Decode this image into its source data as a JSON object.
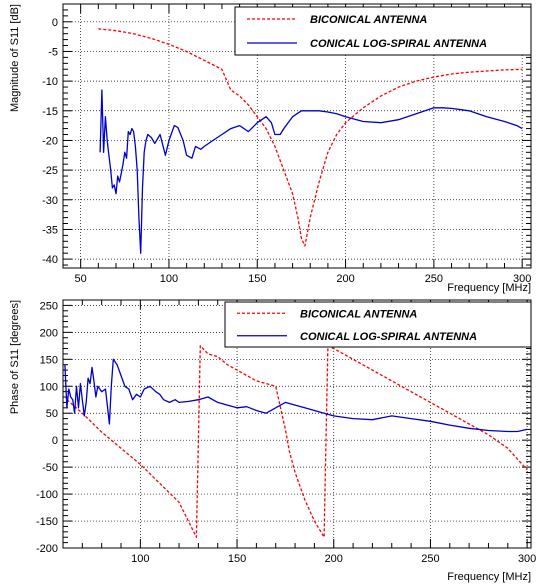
{
  "chart_data": [
    {
      "type": "line",
      "xlabel": "Frequency [MHz]",
      "ylabel": "Magnitude of S11 [dB]",
      "xlim": [
        40,
        305
      ],
      "ylim": [
        -41.5,
        3
      ],
      "xticks": [
        50,
        100,
        150,
        200,
        250,
        300
      ],
      "yticks": [
        -40,
        -35,
        -30,
        -25,
        -20,
        -15,
        -10,
        -5,
        0
      ],
      "grid": true,
      "legend_position": "top-right",
      "series": [
        {
          "name": "BICONICAL ANTENNA",
          "color": "#ff0000",
          "dash": "dashed",
          "x": [
            60,
            70,
            80,
            90,
            100,
            110,
            120,
            130,
            135,
            140,
            145,
            150,
            155,
            160,
            165,
            170,
            173,
            175,
            177,
            180,
            185,
            190,
            195,
            200,
            210,
            220,
            230,
            240,
            250,
            260,
            270,
            280,
            290,
            300
          ],
          "y": [
            -1.2,
            -1.5,
            -2.0,
            -2.8,
            -3.8,
            -5.0,
            -6.5,
            -8.0,
            -11.5,
            -12.5,
            -14.0,
            -16.0,
            -18.0,
            -21.0,
            -25.0,
            -29.0,
            -33.0,
            -36.5,
            -37.8,
            -33.0,
            -27.0,
            -22.0,
            -19.0,
            -17.0,
            -14.5,
            -12.5,
            -11.0,
            -10.0,
            -9.3,
            -8.8,
            -8.5,
            -8.3,
            -8.1,
            -8.0
          ]
        },
        {
          "name": "CONICAL LOG-SPIRAL ANTENNA",
          "color": "#0000cc",
          "dash": "solid",
          "x": [
            61,
            62,
            63,
            64,
            65,
            66,
            67,
            68,
            69,
            70,
            71,
            72,
            73,
            74,
            75,
            76,
            77,
            78,
            79,
            80,
            81,
            82,
            83,
            84,
            85,
            86,
            87,
            88,
            90,
            92,
            95,
            98,
            100,
            103,
            105,
            108,
            110,
            113,
            115,
            118,
            120,
            125,
            130,
            135,
            140,
            145,
            150,
            155,
            158,
            160,
            163,
            165,
            170,
            175,
            180,
            185,
            190,
            195,
            200,
            210,
            220,
            230,
            240,
            250,
            255,
            260,
            270,
            280,
            290,
            297,
            300
          ],
          "y": [
            -22.0,
            -11.5,
            -22.0,
            -16.0,
            -20.0,
            -22.5,
            -25.0,
            -28.0,
            -27.5,
            -29.0,
            -26.0,
            -27.0,
            -25.5,
            -24.0,
            -22.0,
            -23.0,
            -18.5,
            -19.0,
            -18.0,
            -18.5,
            -21.0,
            -25.0,
            -33.0,
            -39.0,
            -28.0,
            -22.0,
            -20.0,
            -19.0,
            -19.5,
            -20.5,
            -19.0,
            -22.5,
            -20.0,
            -17.5,
            -17.8,
            -20.0,
            -22.5,
            -23.0,
            -21.0,
            -21.5,
            -21.0,
            -20.0,
            -19.0,
            -18.0,
            -17.5,
            -18.5,
            -17.0,
            -16.0,
            -17.0,
            -19.0,
            -19.0,
            -18.0,
            -16.0,
            -15.0,
            -15.0,
            -15.0,
            -15.2,
            -15.5,
            -16.0,
            -16.8,
            -17.0,
            -16.5,
            -15.5,
            -14.5,
            -14.5,
            -14.6,
            -15.0,
            -16.0,
            -16.8,
            -17.5,
            -18.0
          ]
        }
      ]
    },
    {
      "type": "line",
      "xlabel": "Frequency [MHz]",
      "ylabel": "Phase of S11 [degrees]",
      "xlim": [
        60,
        302
      ],
      "ylim": [
        -200,
        260
      ],
      "xticks": [
        100,
        150,
        200,
        250,
        300
      ],
      "yticks": [
        -200,
        -150,
        -100,
        -50,
        0,
        50,
        100,
        150,
        200,
        250
      ],
      "grid": true,
      "legend_position": "top-right",
      "series": [
        {
          "name": "BICONICAL ANTENNA",
          "color": "#ff0000",
          "dash": "dashed",
          "x": [
            62,
            70,
            80,
            90,
            100,
            110,
            120,
            129,
            130,
            131,
            135,
            140,
            145,
            150,
            155,
            160,
            165,
            170,
            175,
            177,
            180,
            185,
            190,
            195,
            196,
            197,
            200,
            210,
            220,
            230,
            240,
            250,
            260,
            270,
            280,
            290,
            300
          ],
          "y": [
            75,
            50,
            15,
            -15,
            -45,
            -80,
            -115,
            -180,
            0,
            175,
            160,
            155,
            140,
            130,
            120,
            110,
            105,
            100,
            20,
            -20,
            -60,
            -110,
            -150,
            -180,
            0,
            175,
            170,
            150,
            130,
            110,
            90,
            70,
            50,
            30,
            10,
            -15,
            -55
          ]
        },
        {
          "name": "CONICAL LOG-SPIRAL ANTENNA",
          "color": "#0000cc",
          "dash": "solid",
          "x": [
            61,
            62,
            63,
            64,
            65,
            66,
            67,
            68,
            69,
            70,
            71,
            72,
            73,
            74,
            75,
            76,
            77,
            78,
            80,
            82,
            84,
            85,
            86,
            88,
            90,
            92,
            94,
            96,
            98,
            100,
            102,
            105,
            108,
            110,
            112,
            115,
            118,
            120,
            125,
            130,
            135,
            140,
            145,
            150,
            155,
            160,
            165,
            170,
            175,
            180,
            185,
            190,
            195,
            200,
            210,
            220,
            230,
            240,
            250,
            260,
            270,
            280,
            290,
            295,
            300
          ],
          "y": [
            140,
            60,
            95,
            80,
            75,
            50,
            100,
            60,
            105,
            75,
            45,
            70,
            115,
            105,
            135,
            110,
            80,
            100,
            90,
            95,
            30,
            100,
            150,
            140,
            120,
            100,
            95,
            75,
            85,
            80,
            95,
            100,
            90,
            85,
            75,
            70,
            75,
            70,
            72,
            75,
            80,
            70,
            65,
            60,
            62,
            55,
            50,
            60,
            70,
            65,
            60,
            55,
            50,
            45,
            40,
            38,
            45,
            40,
            35,
            28,
            22,
            18,
            16,
            16,
            20
          ]
        }
      ]
    }
  ]
}
